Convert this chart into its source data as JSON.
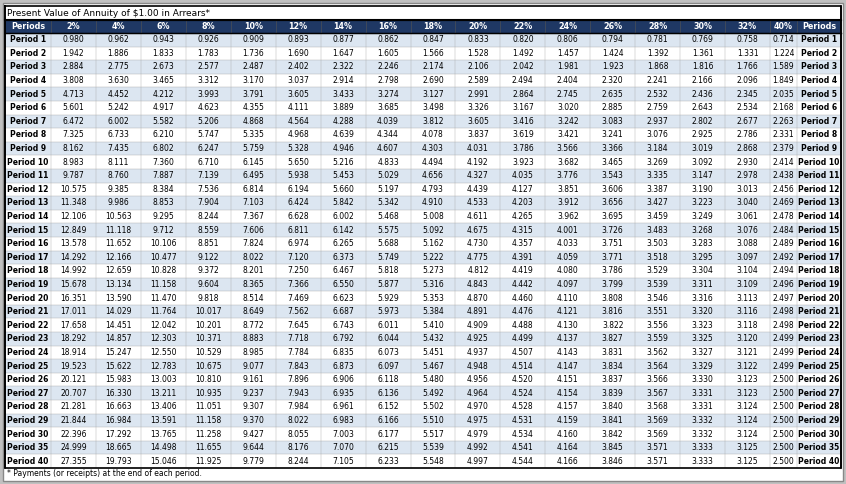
{
  "title": "Present Value of Annuity of $1.00 in Arrears*",
  "footnote": "* Payments (or receipts) at the end of each period.",
  "columns": [
    "Periods",
    "2%",
    "4%",
    "6%",
    "8%",
    "10%",
    "12%",
    "14%",
    "16%",
    "18%",
    "20%",
    "22%",
    "24%",
    "26%",
    "28%",
    "30%",
    "32%",
    "40%",
    "Periods"
  ],
  "rows": [
    [
      "Period 1",
      "0.980",
      "0.962",
      "0.943",
      "0.926",
      "0.909",
      "0.893",
      "0.877",
      "0.862",
      "0.847",
      "0.833",
      "0.820",
      "0.806",
      "0.794",
      "0.781",
      "0.769",
      "0.758",
      "0.714",
      "Period 1"
    ],
    [
      "Period 2",
      "1.942",
      "1.886",
      "1.833",
      "1.783",
      "1.736",
      "1.690",
      "1.647",
      "1.605",
      "1.566",
      "1.528",
      "1.492",
      "1.457",
      "1.424",
      "1.392",
      "1.361",
      "1.331",
      "1.224",
      "Period 2"
    ],
    [
      "Period 3",
      "2.884",
      "2.775",
      "2.673",
      "2.577",
      "2.487",
      "2.402",
      "2.322",
      "2.246",
      "2.174",
      "2.106",
      "2.042",
      "1.981",
      "1.923",
      "1.868",
      "1.816",
      "1.766",
      "1.589",
      "Period 3"
    ],
    [
      "Period 4",
      "3.808",
      "3.630",
      "3.465",
      "3.312",
      "3.170",
      "3.037",
      "2.914",
      "2.798",
      "2.690",
      "2.589",
      "2.494",
      "2.404",
      "2.320",
      "2.241",
      "2.166",
      "2.096",
      "1.849",
      "Period 4"
    ],
    [
      "Period 5",
      "4.713",
      "4.452",
      "4.212",
      "3.993",
      "3.791",
      "3.605",
      "3.433",
      "3.274",
      "3.127",
      "2.991",
      "2.864",
      "2.745",
      "2.635",
      "2.532",
      "2.436",
      "2.345",
      "2.035",
      "Period 5"
    ],
    [
      "Period 6",
      "5.601",
      "5.242",
      "4.917",
      "4.623",
      "4.355",
      "4.111",
      "3.889",
      "3.685",
      "3.498",
      "3.326",
      "3.167",
      "3.020",
      "2.885",
      "2.759",
      "2.643",
      "2.534",
      "2.168",
      "Period 6"
    ],
    [
      "Period 7",
      "6.472",
      "6.002",
      "5.582",
      "5.206",
      "4.868",
      "4.564",
      "4.288",
      "4.039",
      "3.812",
      "3.605",
      "3.416",
      "3.242",
      "3.083",
      "2.937",
      "2.802",
      "2.677",
      "2.263",
      "Period 7"
    ],
    [
      "Period 8",
      "7.325",
      "6.733",
      "6.210",
      "5.747",
      "5.335",
      "4.968",
      "4.639",
      "4.344",
      "4.078",
      "3.837",
      "3.619",
      "3.421",
      "3.241",
      "3.076",
      "2.925",
      "2.786",
      "2.331",
      "Period 8"
    ],
    [
      "Period 9",
      "8.162",
      "7.435",
      "6.802",
      "6.247",
      "5.759",
      "5.328",
      "4.946",
      "4.607",
      "4.303",
      "4.031",
      "3.786",
      "3.566",
      "3.366",
      "3.184",
      "3.019",
      "2.868",
      "2.379",
      "Period 9"
    ],
    [
      "Period 10",
      "8.983",
      "8.111",
      "7.360",
      "6.710",
      "6.145",
      "5.650",
      "5.216",
      "4.833",
      "4.494",
      "4.192",
      "3.923",
      "3.682",
      "3.465",
      "3.269",
      "3.092",
      "2.930",
      "2.414",
      "Period 10"
    ],
    [
      "Period 11",
      "9.787",
      "8.760",
      "7.887",
      "7.139",
      "6.495",
      "5.938",
      "5.453",
      "5.029",
      "4.656",
      "4.327",
      "4.035",
      "3.776",
      "3.543",
      "3.335",
      "3.147",
      "2.978",
      "2.438",
      "Period 11"
    ],
    [
      "Period 12",
      "10.575",
      "9.385",
      "8.384",
      "7.536",
      "6.814",
      "6.194",
      "5.660",
      "5.197",
      "4.793",
      "4.439",
      "4.127",
      "3.851",
      "3.606",
      "3.387",
      "3.190",
      "3.013",
      "2.456",
      "Period 12"
    ],
    [
      "Period 13",
      "11.348",
      "9.986",
      "8.853",
      "7.904",
      "7.103",
      "6.424",
      "5.842",
      "5.342",
      "4.910",
      "4.533",
      "4.203",
      "3.912",
      "3.656",
      "3.427",
      "3.223",
      "3.040",
      "2.469",
      "Period 13"
    ],
    [
      "Period 14",
      "12.106",
      "10.563",
      "9.295",
      "8.244",
      "7.367",
      "6.628",
      "6.002",
      "5.468",
      "5.008",
      "4.611",
      "4.265",
      "3.962",
      "3.695",
      "3.459",
      "3.249",
      "3.061",
      "2.478",
      "Period 14"
    ],
    [
      "Period 15",
      "12.849",
      "11.118",
      "9.712",
      "8.559",
      "7.606",
      "6.811",
      "6.142",
      "5.575",
      "5.092",
      "4.675",
      "4.315",
      "4.001",
      "3.726",
      "3.483",
      "3.268",
      "3.076",
      "2.484",
      "Period 15"
    ],
    [
      "Period 16",
      "13.578",
      "11.652",
      "10.106",
      "8.851",
      "7.824",
      "6.974",
      "6.265",
      "5.688",
      "5.162",
      "4.730",
      "4.357",
      "4.033",
      "3.751",
      "3.503",
      "3.283",
      "3.088",
      "2.489",
      "Period 16"
    ],
    [
      "Period 17",
      "14.292",
      "12.166",
      "10.477",
      "9.122",
      "8.022",
      "7.120",
      "6.373",
      "5.749",
      "5.222",
      "4.775",
      "4.391",
      "4.059",
      "3.771",
      "3.518",
      "3.295",
      "3.097",
      "2.492",
      "Period 17"
    ],
    [
      "Period 18",
      "14.992",
      "12.659",
      "10.828",
      "9.372",
      "8.201",
      "7.250",
      "6.467",
      "5.818",
      "5.273",
      "4.812",
      "4.419",
      "4.080",
      "3.786",
      "3.529",
      "3.304",
      "3.104",
      "2.494",
      "Period 18"
    ],
    [
      "Period 19",
      "15.678",
      "13.134",
      "11.158",
      "9.604",
      "8.365",
      "7.366",
      "6.550",
      "5.877",
      "5.316",
      "4.843",
      "4.442",
      "4.097",
      "3.799",
      "3.539",
      "3.311",
      "3.109",
      "2.496",
      "Period 19"
    ],
    [
      "Period 20",
      "16.351",
      "13.590",
      "11.470",
      "9.818",
      "8.514",
      "7.469",
      "6.623",
      "5.929",
      "5.353",
      "4.870",
      "4.460",
      "4.110",
      "3.808",
      "3.546",
      "3.316",
      "3.113",
      "2.497",
      "Period 20"
    ],
    [
      "Period 21",
      "17.011",
      "14.029",
      "11.764",
      "10.017",
      "8.649",
      "7.562",
      "6.687",
      "5.973",
      "5.384",
      "4.891",
      "4.476",
      "4.121",
      "3.816",
      "3.551",
      "3.320",
      "3.116",
      "2.498",
      "Period 21"
    ],
    [
      "Period 22",
      "17.658",
      "14.451",
      "12.042",
      "10.201",
      "8.772",
      "7.645",
      "6.743",
      "6.011",
      "5.410",
      "4.909",
      "4.488",
      "4.130",
      "3.822",
      "3.556",
      "3.323",
      "3.118",
      "2.498",
      "Period 22"
    ],
    [
      "Period 23",
      "18.292",
      "14.857",
      "12.303",
      "10.371",
      "8.883",
      "7.718",
      "6.792",
      "6.044",
      "5.432",
      "4.925",
      "4.499",
      "4.137",
      "3.827",
      "3.559",
      "3.325",
      "3.120",
      "2.499",
      "Period 23"
    ],
    [
      "Period 24",
      "18.914",
      "15.247",
      "12.550",
      "10.529",
      "8.985",
      "7.784",
      "6.835",
      "6.073",
      "5.451",
      "4.937",
      "4.507",
      "4.143",
      "3.831",
      "3.562",
      "3.327",
      "3.121",
      "2.499",
      "Period 24"
    ],
    [
      "Period 25",
      "19.523",
      "15.622",
      "12.783",
      "10.675",
      "9.077",
      "7.843",
      "6.873",
      "6.097",
      "5.467",
      "4.948",
      "4.514",
      "4.147",
      "3.834",
      "3.564",
      "3.329",
      "3.122",
      "2.499",
      "Period 25"
    ],
    [
      "Period 26",
      "20.121",
      "15.983",
      "13.003",
      "10.810",
      "9.161",
      "7.896",
      "6.906",
      "6.118",
      "5.480",
      "4.956",
      "4.520",
      "4.151",
      "3.837",
      "3.566",
      "3.330",
      "3.123",
      "2.500",
      "Period 26"
    ],
    [
      "Period 27",
      "20.707",
      "16.330",
      "13.211",
      "10.935",
      "9.237",
      "7.943",
      "6.935",
      "6.136",
      "5.492",
      "4.964",
      "4.524",
      "4.154",
      "3.839",
      "3.567",
      "3.331",
      "3.123",
      "2.500",
      "Period 27"
    ],
    [
      "Period 28",
      "21.281",
      "16.663",
      "13.406",
      "11.051",
      "9.307",
      "7.984",
      "6.961",
      "6.152",
      "5.502",
      "4.970",
      "4.528",
      "4.157",
      "3.840",
      "3.568",
      "3.331",
      "3.124",
      "2.500",
      "Period 28"
    ],
    [
      "Period 29",
      "21.844",
      "16.984",
      "13.591",
      "11.158",
      "9.370",
      "8.022",
      "6.983",
      "6.166",
      "5.510",
      "4.975",
      "4.531",
      "4.159",
      "3.841",
      "3.569",
      "3.332",
      "3.124",
      "2.500",
      "Period 29"
    ],
    [
      "Period 30",
      "22.396",
      "17.292",
      "13.765",
      "11.258",
      "9.427",
      "8.055",
      "7.003",
      "6.177",
      "5.517",
      "4.979",
      "4.534",
      "4.160",
      "3.842",
      "3.569",
      "3.332",
      "3.124",
      "2.500",
      "Period 30"
    ],
    [
      "Period 35",
      "24.999",
      "18.665",
      "14.498",
      "11.655",
      "9.644",
      "8.176",
      "7.070",
      "6.215",
      "5.539",
      "4.992",
      "4.541",
      "4.164",
      "3.845",
      "3.571",
      "3.333",
      "3.125",
      "2.500",
      "Period 35"
    ],
    [
      "Period 40",
      "27.355",
      "19.793",
      "15.046",
      "11.925",
      "9.779",
      "8.244",
      "7.105",
      "6.233",
      "5.548",
      "4.997",
      "4.544",
      "4.166",
      "3.846",
      "3.571",
      "3.333",
      "3.125",
      "2.500",
      "Period 40"
    ]
  ],
  "header_bg": "#1f3864",
  "header_fg": "#ffffff",
  "row_bg_even": "#dce6f1",
  "row_bg_odd": "#ffffff",
  "grid_color": "#aaaaaa",
  "outer_bg": "#c0c0c0",
  "inner_bg": "#ffffff",
  "title_fg": "#000000",
  "footnote_fg": "#000000",
  "header_border": "#000000"
}
